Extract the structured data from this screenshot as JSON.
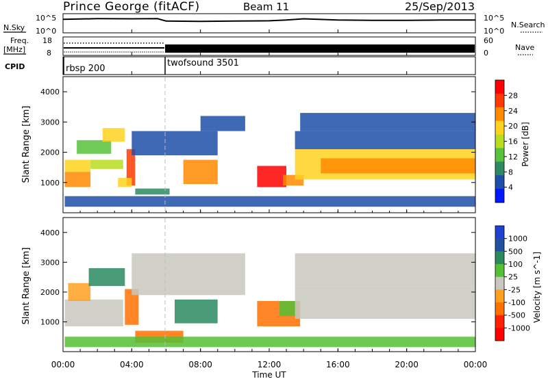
{
  "header": {
    "station": "Prince George (fitACF)",
    "beam": "Beam 11",
    "date": "25/Sep/2013"
  },
  "noise_panel": {
    "left_label": "N.Sky",
    "left_ticks": [
      "10^5",
      "10^0"
    ],
    "right_ticks": [
      "10^5",
      "10^0"
    ],
    "right_label": "N.Search"
  },
  "freq_panel": {
    "left_label_1": "Freq.",
    "left_label_2": "[MHz]",
    "left_ticks": [
      "18",
      "8"
    ],
    "right_ticks": [
      "60",
      "0"
    ],
    "right_label": "Nave"
  },
  "cpid_panel": {
    "label": "CPID",
    "modes": [
      {
        "name": "rbsp 200",
        "start_hour": 0
      },
      {
        "name": "twofsound 3501",
        "start_hour": 6
      }
    ]
  },
  "x_axis": {
    "label": "Time UT",
    "ticks": [
      "00:00",
      "04:00",
      "08:00",
      "12:00",
      "16:00",
      "20:00",
      "00:00"
    ],
    "range_hours": [
      0,
      24
    ]
  },
  "colors": {
    "power": [
      "#0018ff",
      "#1d4fa8",
      "#2e8a63",
      "#57c23a",
      "#b8dc1f",
      "#ffd21f",
      "#ff8a00",
      "#ff3a00",
      "#ff0000"
    ],
    "velocity": [
      "#2040d0",
      "#2050a0",
      "#2a8a60",
      "#55c035",
      "#c8c8c0",
      "#ffa020",
      "#ff7000",
      "#ff2000",
      "#ff0000"
    ]
  },
  "chart_data": [
    {
      "type": "line",
      "title": "",
      "xlabel": "",
      "ylabel": "N.Sky",
      "y_scale": "log",
      "ylim": [
        1,
        100000
      ],
      "series": [
        {
          "x": [
            0,
            2,
            4,
            5.5,
            6,
            8,
            10,
            12,
            13,
            14,
            16,
            18,
            20,
            22,
            24
          ],
          "values": [
            5000,
            8000,
            7000,
            8000,
            1500,
            1200,
            1500,
            1800,
            3000,
            7000,
            3000,
            2500,
            2500,
            3000,
            3000
          ]
        }
      ]
    },
    {
      "type": "line",
      "xlabel": "",
      "ylabel": "Freq. [MHz]",
      "ylim": [
        8,
        18
      ],
      "series": [
        {
          "x": [
            0,
            6,
            6,
            24
          ],
          "values": [
            10.5,
            10.5,
            10.5,
            10.5
          ]
        },
        {
          "x": [
            0,
            6
          ],
          "values": [
            14.5,
            14.5
          ]
        }
      ]
    },
    {
      "type": "heatmap",
      "title": "",
      "xlabel": "Time UT",
      "ylabel": "Slant Range [km]",
      "xlim": [
        0,
        24
      ],
      "ylim": [
        0,
        4500
      ],
      "y_ticks": [
        1000,
        2000,
        3000,
        4000
      ],
      "colorbar": {
        "label": "Power [dB]",
        "ticks": [
          4,
          8,
          12,
          16,
          20,
          24,
          28
        ]
      },
      "regions": [
        {
          "t0": 0.1,
          "t1": 1.6,
          "r0": 1350,
          "r1": 1750,
          "level": 5
        },
        {
          "t0": 0.1,
          "t1": 1.6,
          "r0": 850,
          "r1": 1350,
          "level": 6
        },
        {
          "t0": 1.6,
          "t1": 3.5,
          "r0": 1450,
          "r1": 1750,
          "level": 4
        },
        {
          "t0": 0.8,
          "t1": 2.8,
          "r0": 1950,
          "r1": 2400,
          "level": 3
        },
        {
          "t0": 2.3,
          "t1": 3.6,
          "r0": 2350,
          "r1": 2800,
          "level": 5
        },
        {
          "t0": 3.7,
          "t1": 4.2,
          "r0": 900,
          "r1": 2100,
          "level": 7
        },
        {
          "t0": 3.2,
          "t1": 4.0,
          "r0": 850,
          "r1": 1150,
          "level": 5
        },
        {
          "t0": 4.2,
          "t1": 6.2,
          "r0": 600,
          "r1": 800,
          "level": 2
        },
        {
          "t0": 4.0,
          "t1": 9.0,
          "r0": 1900,
          "r1": 2700,
          "level": 1
        },
        {
          "t0": 7.0,
          "t1": 9.0,
          "r0": 950,
          "r1": 1750,
          "level": 6
        },
        {
          "t0": 8.0,
          "t1": 10.6,
          "r0": 2700,
          "r1": 3200,
          "level": 1
        },
        {
          "t0": 11.3,
          "t1": 13.0,
          "r0": 850,
          "r1": 1550,
          "level": 8
        },
        {
          "t0": 12.8,
          "t1": 14.0,
          "r0": 900,
          "r1": 1250,
          "level": 6
        },
        {
          "t0": 13.5,
          "t1": 24.0,
          "r0": 1100,
          "r1": 2100,
          "level": 5
        },
        {
          "t0": 15.0,
          "t1": 24.0,
          "r0": 1300,
          "r1": 1800,
          "level": 6
        },
        {
          "t0": 13.5,
          "t1": 24.0,
          "r0": 2100,
          "r1": 2700,
          "level": 1
        },
        {
          "t0": 13.8,
          "t1": 24.0,
          "r0": 2700,
          "r1": 3300,
          "level": 1
        },
        {
          "t0": 0.1,
          "t1": 24.0,
          "r0": 200,
          "r1": 550,
          "level": 1
        }
      ]
    },
    {
      "type": "heatmap",
      "title": "",
      "xlabel": "Time UT",
      "ylabel": "Slant Range [km]",
      "xlim": [
        0,
        24
      ],
      "ylim": [
        0,
        4500
      ],
      "y_ticks": [
        1000,
        2000,
        3000,
        4000
      ],
      "colorbar": {
        "label": "Velocity [m s^-1]",
        "ticks": [
          1000,
          500,
          100,
          25,
          -25,
          -100,
          -500,
          -1000
        ]
      },
      "regions": [
        {
          "t0": 0.1,
          "t1": 3.5,
          "r0": 850,
          "r1": 1750,
          "level": 4
        },
        {
          "t0": 0.3,
          "t1": 1.6,
          "r0": 1700,
          "r1": 2300,
          "level": 5
        },
        {
          "t0": 1.5,
          "t1": 3.6,
          "r0": 2200,
          "r1": 2800,
          "level": 2
        },
        {
          "t0": 3.6,
          "t1": 4.4,
          "r0": 900,
          "r1": 2100,
          "level": 6
        },
        {
          "t0": 4.2,
          "t1": 7.0,
          "r0": 300,
          "r1": 700,
          "level": 6
        },
        {
          "t0": 4.0,
          "t1": 10.6,
          "r0": 1900,
          "r1": 3300,
          "level": 4
        },
        {
          "t0": 6.5,
          "t1": 9.0,
          "r0": 950,
          "r1": 1750,
          "level": 2
        },
        {
          "t0": 11.3,
          "t1": 13.8,
          "r0": 850,
          "r1": 1700,
          "level": 6
        },
        {
          "t0": 12.6,
          "t1": 13.6,
          "r0": 1200,
          "r1": 1700,
          "level": 3
        },
        {
          "t0": 13.5,
          "t1": 24.0,
          "r0": 1100,
          "r1": 2200,
          "level": 4
        },
        {
          "t0": 13.5,
          "t1": 24.0,
          "r0": 2200,
          "r1": 3300,
          "level": 4
        },
        {
          "t0": 0.1,
          "t1": 24.0,
          "r0": 150,
          "r1": 500,
          "level": 3
        }
      ]
    }
  ]
}
